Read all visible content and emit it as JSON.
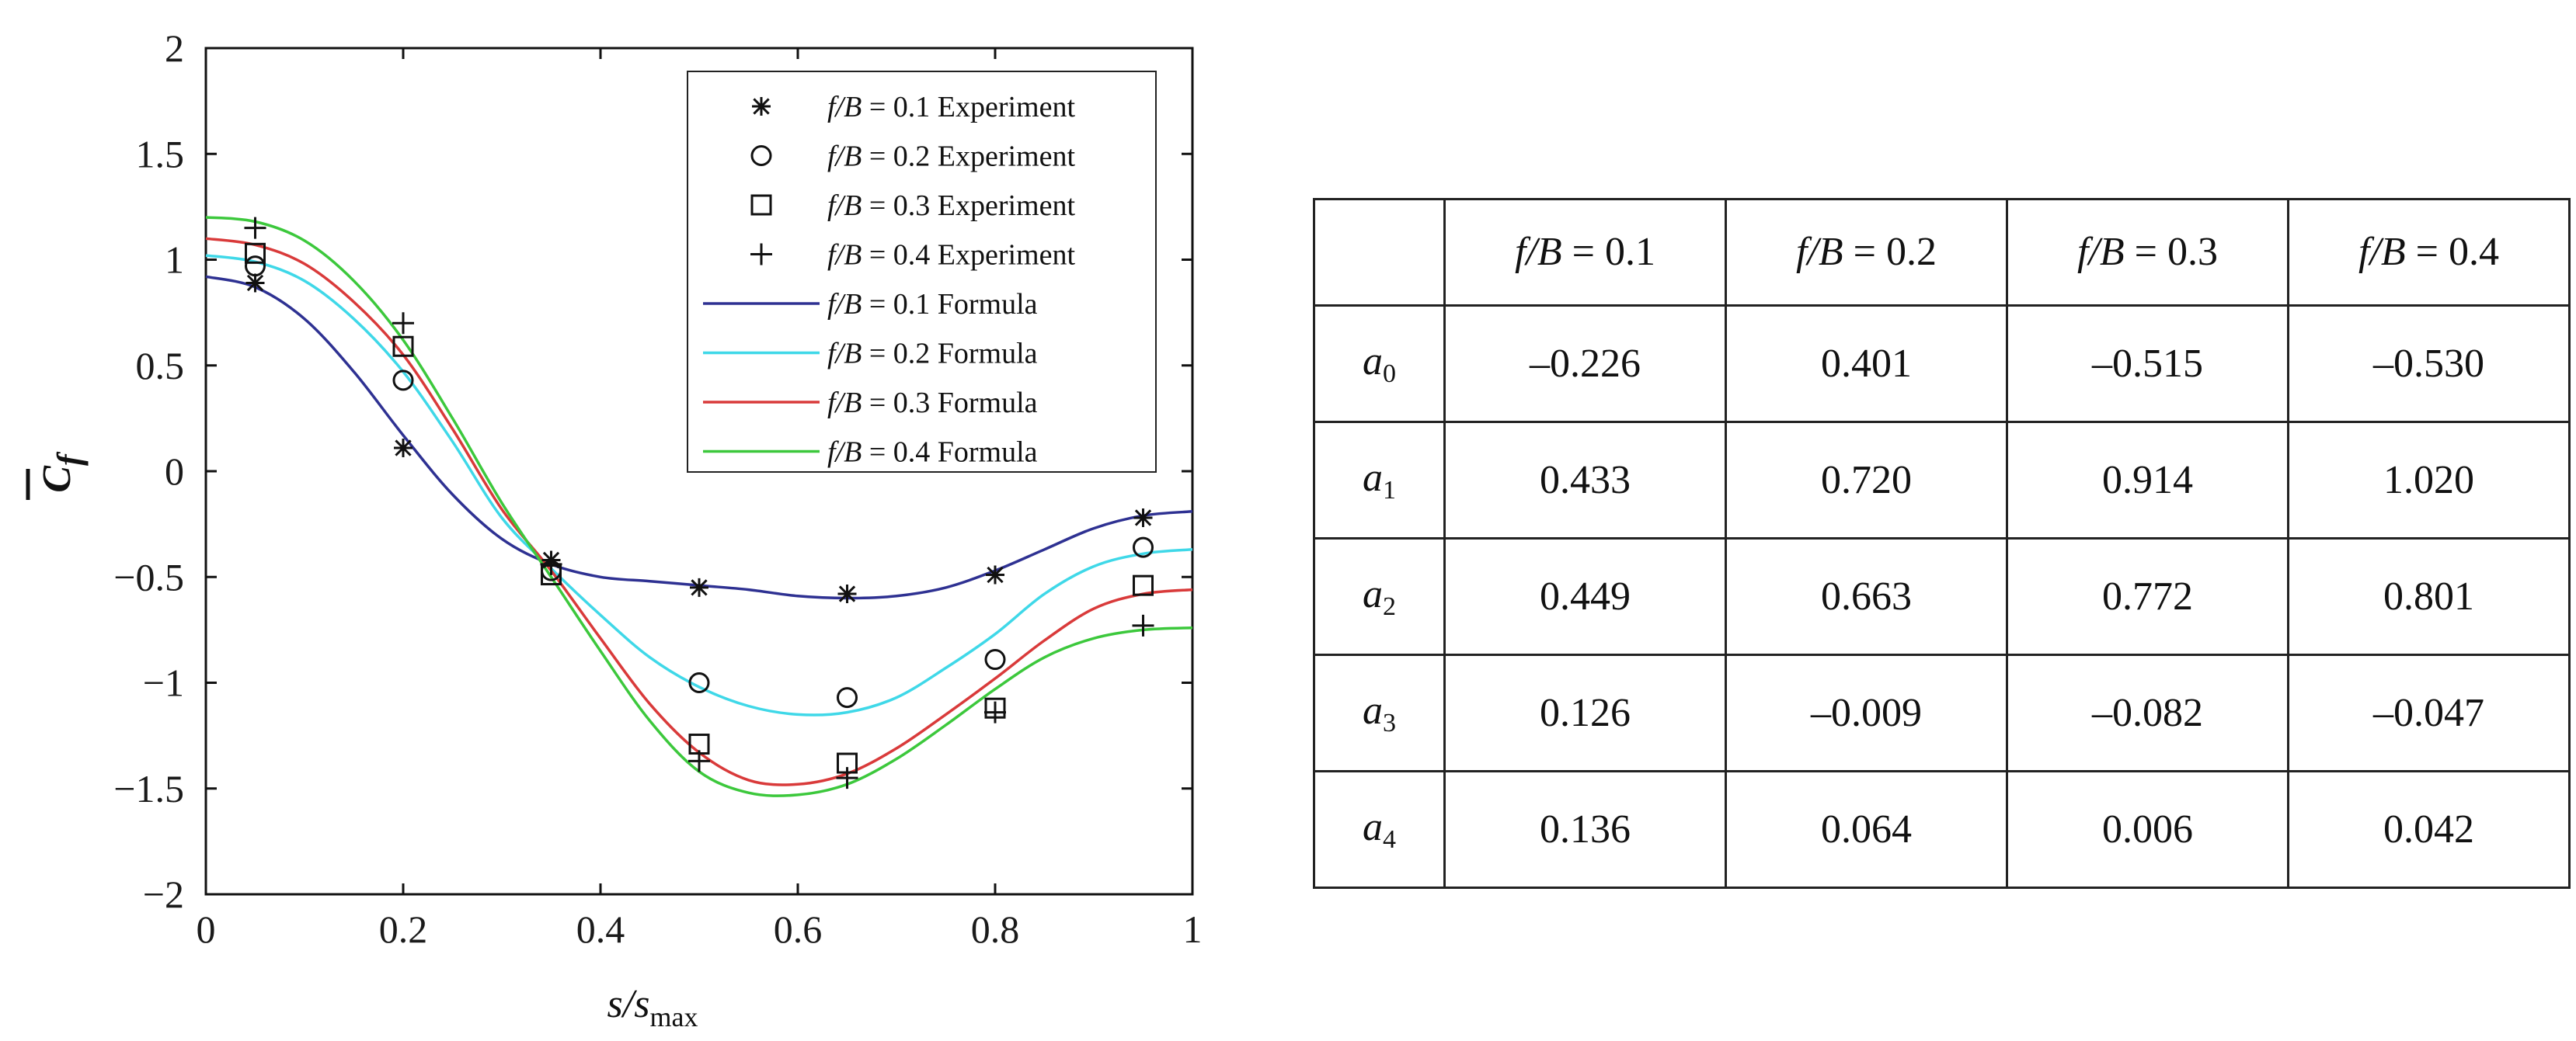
{
  "chart_data": {
    "type": "line",
    "xlabel": "s/s",
    "xlabel_sub": "max",
    "ylabel": "C",
    "ylabel_sub": "f",
    "xlim": [
      0,
      1
    ],
    "ylim": [
      -2,
      2
    ],
    "grid": false,
    "legend_position": "top-right",
    "x_ticks": [
      0,
      0.2,
      0.4,
      0.6,
      0.8,
      1
    ],
    "x_tick_labels": [
      "0",
      "0.2",
      "0.4",
      "0.6",
      "0.8",
      "1"
    ],
    "y_ticks": [
      2,
      1.5,
      1,
      0.5,
      0,
      -0.5,
      -1,
      -1.5,
      -2
    ],
    "y_tick_labels": [
      "2",
      "1.5",
      "1",
      "0.5",
      "0",
      "−0.5",
      "−1",
      "−1.5",
      "−2"
    ],
    "experiment": [
      {
        "name_prefix": "f/B",
        "name_value": " = 0.1 Experiment",
        "marker": "asterisk",
        "x": [
          0.05,
          0.2,
          0.35,
          0.5,
          0.65,
          0.8,
          0.95
        ],
        "y": [
          0.89,
          0.11,
          -0.42,
          -0.55,
          -0.58,
          -0.49,
          -0.22
        ]
      },
      {
        "name_prefix": "f/B",
        "name_value": " = 0.2 Experiment",
        "marker": "circle",
        "x": [
          0.05,
          0.2,
          0.35,
          0.5,
          0.65,
          0.8,
          0.95
        ],
        "y": [
          0.97,
          0.43,
          -0.47,
          -1.0,
          -1.07,
          -0.89,
          -0.36
        ]
      },
      {
        "name_prefix": "f/B",
        "name_value": " = 0.3 Experiment",
        "marker": "square",
        "x": [
          0.05,
          0.2,
          0.35,
          0.5,
          0.65,
          0.8,
          0.95
        ],
        "y": [
          1.03,
          0.59,
          -0.49,
          -1.29,
          -1.38,
          -1.12,
          -0.54
        ]
      },
      {
        "name_prefix": "f/B",
        "name_value": " = 0.4 Experiment",
        "marker": "plus",
        "x": [
          0.05,
          0.2,
          0.35,
          0.5,
          0.65,
          0.8,
          0.95
        ],
        "y": [
          1.15,
          0.7,
          -0.44,
          -1.37,
          -1.45,
          -1.14,
          -0.73
        ]
      }
    ],
    "formula": [
      {
        "name_prefix": "f/B",
        "name_value": " = 0.1 Formula",
        "color": "#2e3192",
        "x": [
          0,
          0.05,
          0.1,
          0.15,
          0.2,
          0.25,
          0.3,
          0.35,
          0.4,
          0.45,
          0.5,
          0.55,
          0.6,
          0.65,
          0.7,
          0.75,
          0.8,
          0.85,
          0.9,
          0.95,
          1.0
        ],
        "y": [
          0.92,
          0.87,
          0.72,
          0.47,
          0.17,
          -0.11,
          -0.32,
          -0.44,
          -0.5,
          -0.52,
          -0.54,
          -0.56,
          -0.59,
          -0.6,
          -0.59,
          -0.55,
          -0.47,
          -0.37,
          -0.27,
          -0.21,
          -0.19
        ]
      },
      {
        "name_prefix": "f/B",
        "name_value": " = 0.2 Formula",
        "color": "#3fd8e8",
        "x": [
          0,
          0.05,
          0.1,
          0.15,
          0.2,
          0.25,
          0.3,
          0.35,
          0.4,
          0.45,
          0.5,
          0.55,
          0.6,
          0.65,
          0.7,
          0.75,
          0.8,
          0.85,
          0.9,
          0.95,
          1.0
        ],
        "y": [
          1.02,
          0.99,
          0.9,
          0.72,
          0.47,
          0.14,
          -0.22,
          -0.46,
          -0.68,
          -0.88,
          -1.02,
          -1.11,
          -1.15,
          -1.14,
          -1.07,
          -0.93,
          -0.77,
          -0.58,
          -0.45,
          -0.39,
          -0.37
        ]
      },
      {
        "name_prefix": "f/B",
        "name_value": " = 0.3 Formula",
        "color": "#d93a3a",
        "x": [
          0,
          0.05,
          0.1,
          0.15,
          0.2,
          0.25,
          0.3,
          0.35,
          0.4,
          0.45,
          0.5,
          0.55,
          0.6,
          0.65,
          0.7,
          0.75,
          0.8,
          0.85,
          0.9,
          0.95,
          1.0
        ],
        "y": [
          1.1,
          1.07,
          0.98,
          0.8,
          0.55,
          0.2,
          -0.18,
          -0.47,
          -0.79,
          -1.1,
          -1.33,
          -1.46,
          -1.48,
          -1.43,
          -1.31,
          -1.15,
          -0.98,
          -0.8,
          -0.65,
          -0.58,
          -0.56
        ]
      },
      {
        "name_prefix": "f/B",
        "name_value": " = 0.4 Formula",
        "color": "#3cc83c",
        "x": [
          0,
          0.05,
          0.1,
          0.15,
          0.2,
          0.25,
          0.3,
          0.35,
          0.4,
          0.45,
          0.5,
          0.55,
          0.6,
          0.65,
          0.7,
          0.75,
          0.8,
          0.85,
          0.9,
          0.95,
          1.0
        ],
        "y": [
          1.2,
          1.18,
          1.09,
          0.9,
          0.62,
          0.25,
          -0.15,
          -0.5,
          -0.85,
          -1.18,
          -1.42,
          -1.52,
          -1.53,
          -1.48,
          -1.36,
          -1.2,
          -1.03,
          -0.88,
          -0.79,
          -0.75,
          -0.74
        ]
      }
    ]
  },
  "table": {
    "header_prefix": "f/B",
    "headers": [
      " = 0.1",
      " = 0.2",
      " = 0.3",
      " = 0.4"
    ],
    "rows": [
      {
        "letter": "a",
        "sub": "0",
        "values": [
          "–0.226",
          "0.401",
          "–0.515",
          "–0.530"
        ]
      },
      {
        "letter": "a",
        "sub": "1",
        "values": [
          "0.433",
          "0.720",
          "0.914",
          "1.020"
        ]
      },
      {
        "letter": "a",
        "sub": "2",
        "values": [
          "0.449",
          "0.663",
          "0.772",
          "0.801"
        ]
      },
      {
        "letter": "a",
        "sub": "3",
        "values": [
          "0.126",
          "–0.009",
          "–0.082",
          "–0.047"
        ]
      },
      {
        "letter": "a",
        "sub": "4",
        "values": [
          "0.136",
          "0.064",
          "0.006",
          "0.042"
        ]
      }
    ]
  }
}
